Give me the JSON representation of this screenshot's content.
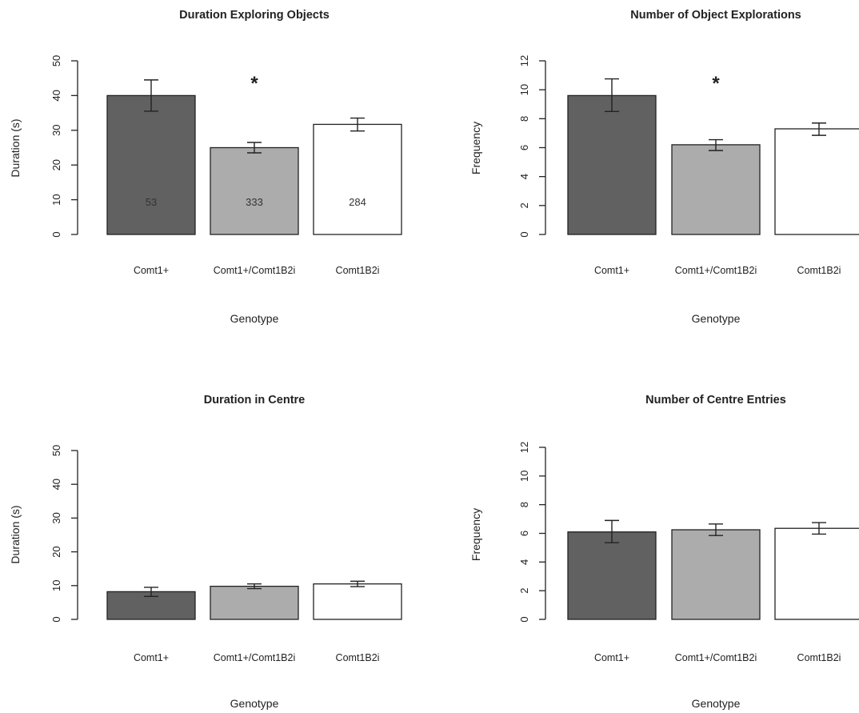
{
  "colors": {
    "dark": "#616161",
    "light": "#acacac",
    "white": "#ffffff",
    "stroke": "#222222"
  },
  "chart_data": [
    {
      "type": "bar",
      "title": "Duration Exploring Objects",
      "xlabel": "Genotype",
      "ylabel": "Duration (s)",
      "ylim": [
        0,
        50
      ],
      "yticks": [
        0,
        10,
        20,
        30,
        40,
        50
      ],
      "categories": [
        "Comt1+",
        "Comt1+/Comt1B2i",
        "Comt1B2i"
      ],
      "values": [
        40,
        25,
        31.7
      ],
      "err_low": [
        35.5,
        23.5,
        29.8
      ],
      "err_high": [
        44.5,
        26.5,
        33.5
      ],
      "bar_labels": [
        "53",
        "333",
        "284"
      ],
      "significance": [
        "",
        "*",
        ""
      ],
      "grid": false
    },
    {
      "type": "bar",
      "title": "Number of Object Explorations",
      "xlabel": "Genotype",
      "ylabel": "Frequency",
      "ylim": [
        0,
        12
      ],
      "yticks": [
        0,
        2,
        4,
        6,
        8,
        10,
        12
      ],
      "categories": [
        "Comt1+",
        "Comt1+/Comt1B2i",
        "Comt1B2i"
      ],
      "values": [
        9.6,
        6.2,
        7.3
      ],
      "err_low": [
        8.5,
        5.8,
        6.85
      ],
      "err_high": [
        10.75,
        6.55,
        7.7
      ],
      "bar_labels": [
        "",
        "",
        ""
      ],
      "significance": [
        "",
        "*",
        ""
      ],
      "grid": false
    },
    {
      "type": "bar",
      "title": "Duration in Centre",
      "xlabel": "Genotype",
      "ylabel": "Duration (s)",
      "ylim": [
        0,
        50
      ],
      "yticks": [
        0,
        10,
        20,
        30,
        40,
        50
      ],
      "categories": [
        "Comt1+",
        "Comt1+/Comt1B2i",
        "Comt1B2i"
      ],
      "values": [
        8.2,
        9.8,
        10.5
      ],
      "err_low": [
        6.8,
        9.1,
        9.7
      ],
      "err_high": [
        9.5,
        10.5,
        11.3
      ],
      "bar_labels": [
        "",
        "",
        ""
      ],
      "significance": [
        "",
        "",
        ""
      ],
      "grid": false
    },
    {
      "type": "bar",
      "title": "Number of Centre Entries",
      "xlabel": "Genotype",
      "ylabel": "Frequency",
      "ylim": [
        0,
        12
      ],
      "yticks": [
        0,
        2,
        4,
        6,
        8,
        10,
        12
      ],
      "categories": [
        "Comt1+",
        "Comt1+/Comt1B2i",
        "Comt1B2i"
      ],
      "values": [
        6.1,
        6.25,
        6.35
      ],
      "err_low": [
        5.35,
        5.85,
        5.95
      ],
      "err_high": [
        6.9,
        6.65,
        6.75
      ],
      "bar_labels": [
        "",
        "",
        ""
      ],
      "significance": [
        "",
        "",
        ""
      ],
      "grid": false
    }
  ]
}
